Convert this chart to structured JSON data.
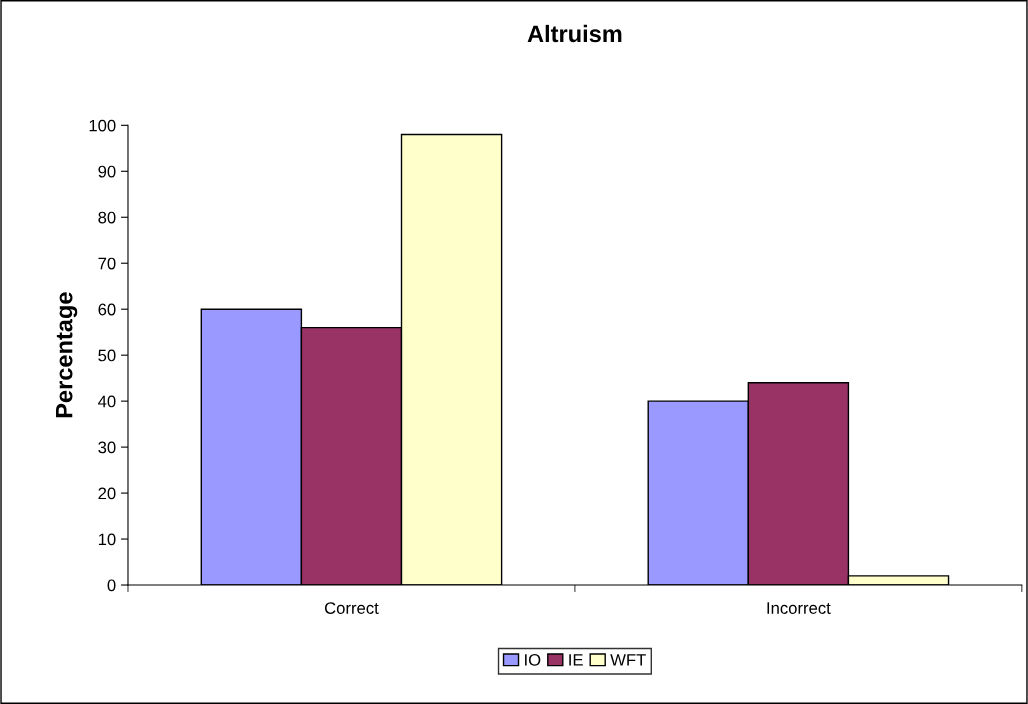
{
  "chart_data": {
    "type": "bar",
    "title": "Altruism",
    "ylabel": "Percentage",
    "categories": [
      "Correct",
      "Incorrect"
    ],
    "series": [
      {
        "name": "IO",
        "color": "#9999ff",
        "values": [
          60,
          40
        ]
      },
      {
        "name": "IE",
        "color": "#993366",
        "values": [
          56,
          44
        ]
      },
      {
        "name": "WFT",
        "color": "#ffffcc",
        "values": [
          98,
          2
        ]
      }
    ],
    "ylim": [
      0,
      100
    ],
    "yticks": [
      0,
      10,
      20,
      30,
      40,
      50,
      60,
      70,
      80,
      90,
      100
    ],
    "grid": false,
    "legend": "bottom"
  }
}
